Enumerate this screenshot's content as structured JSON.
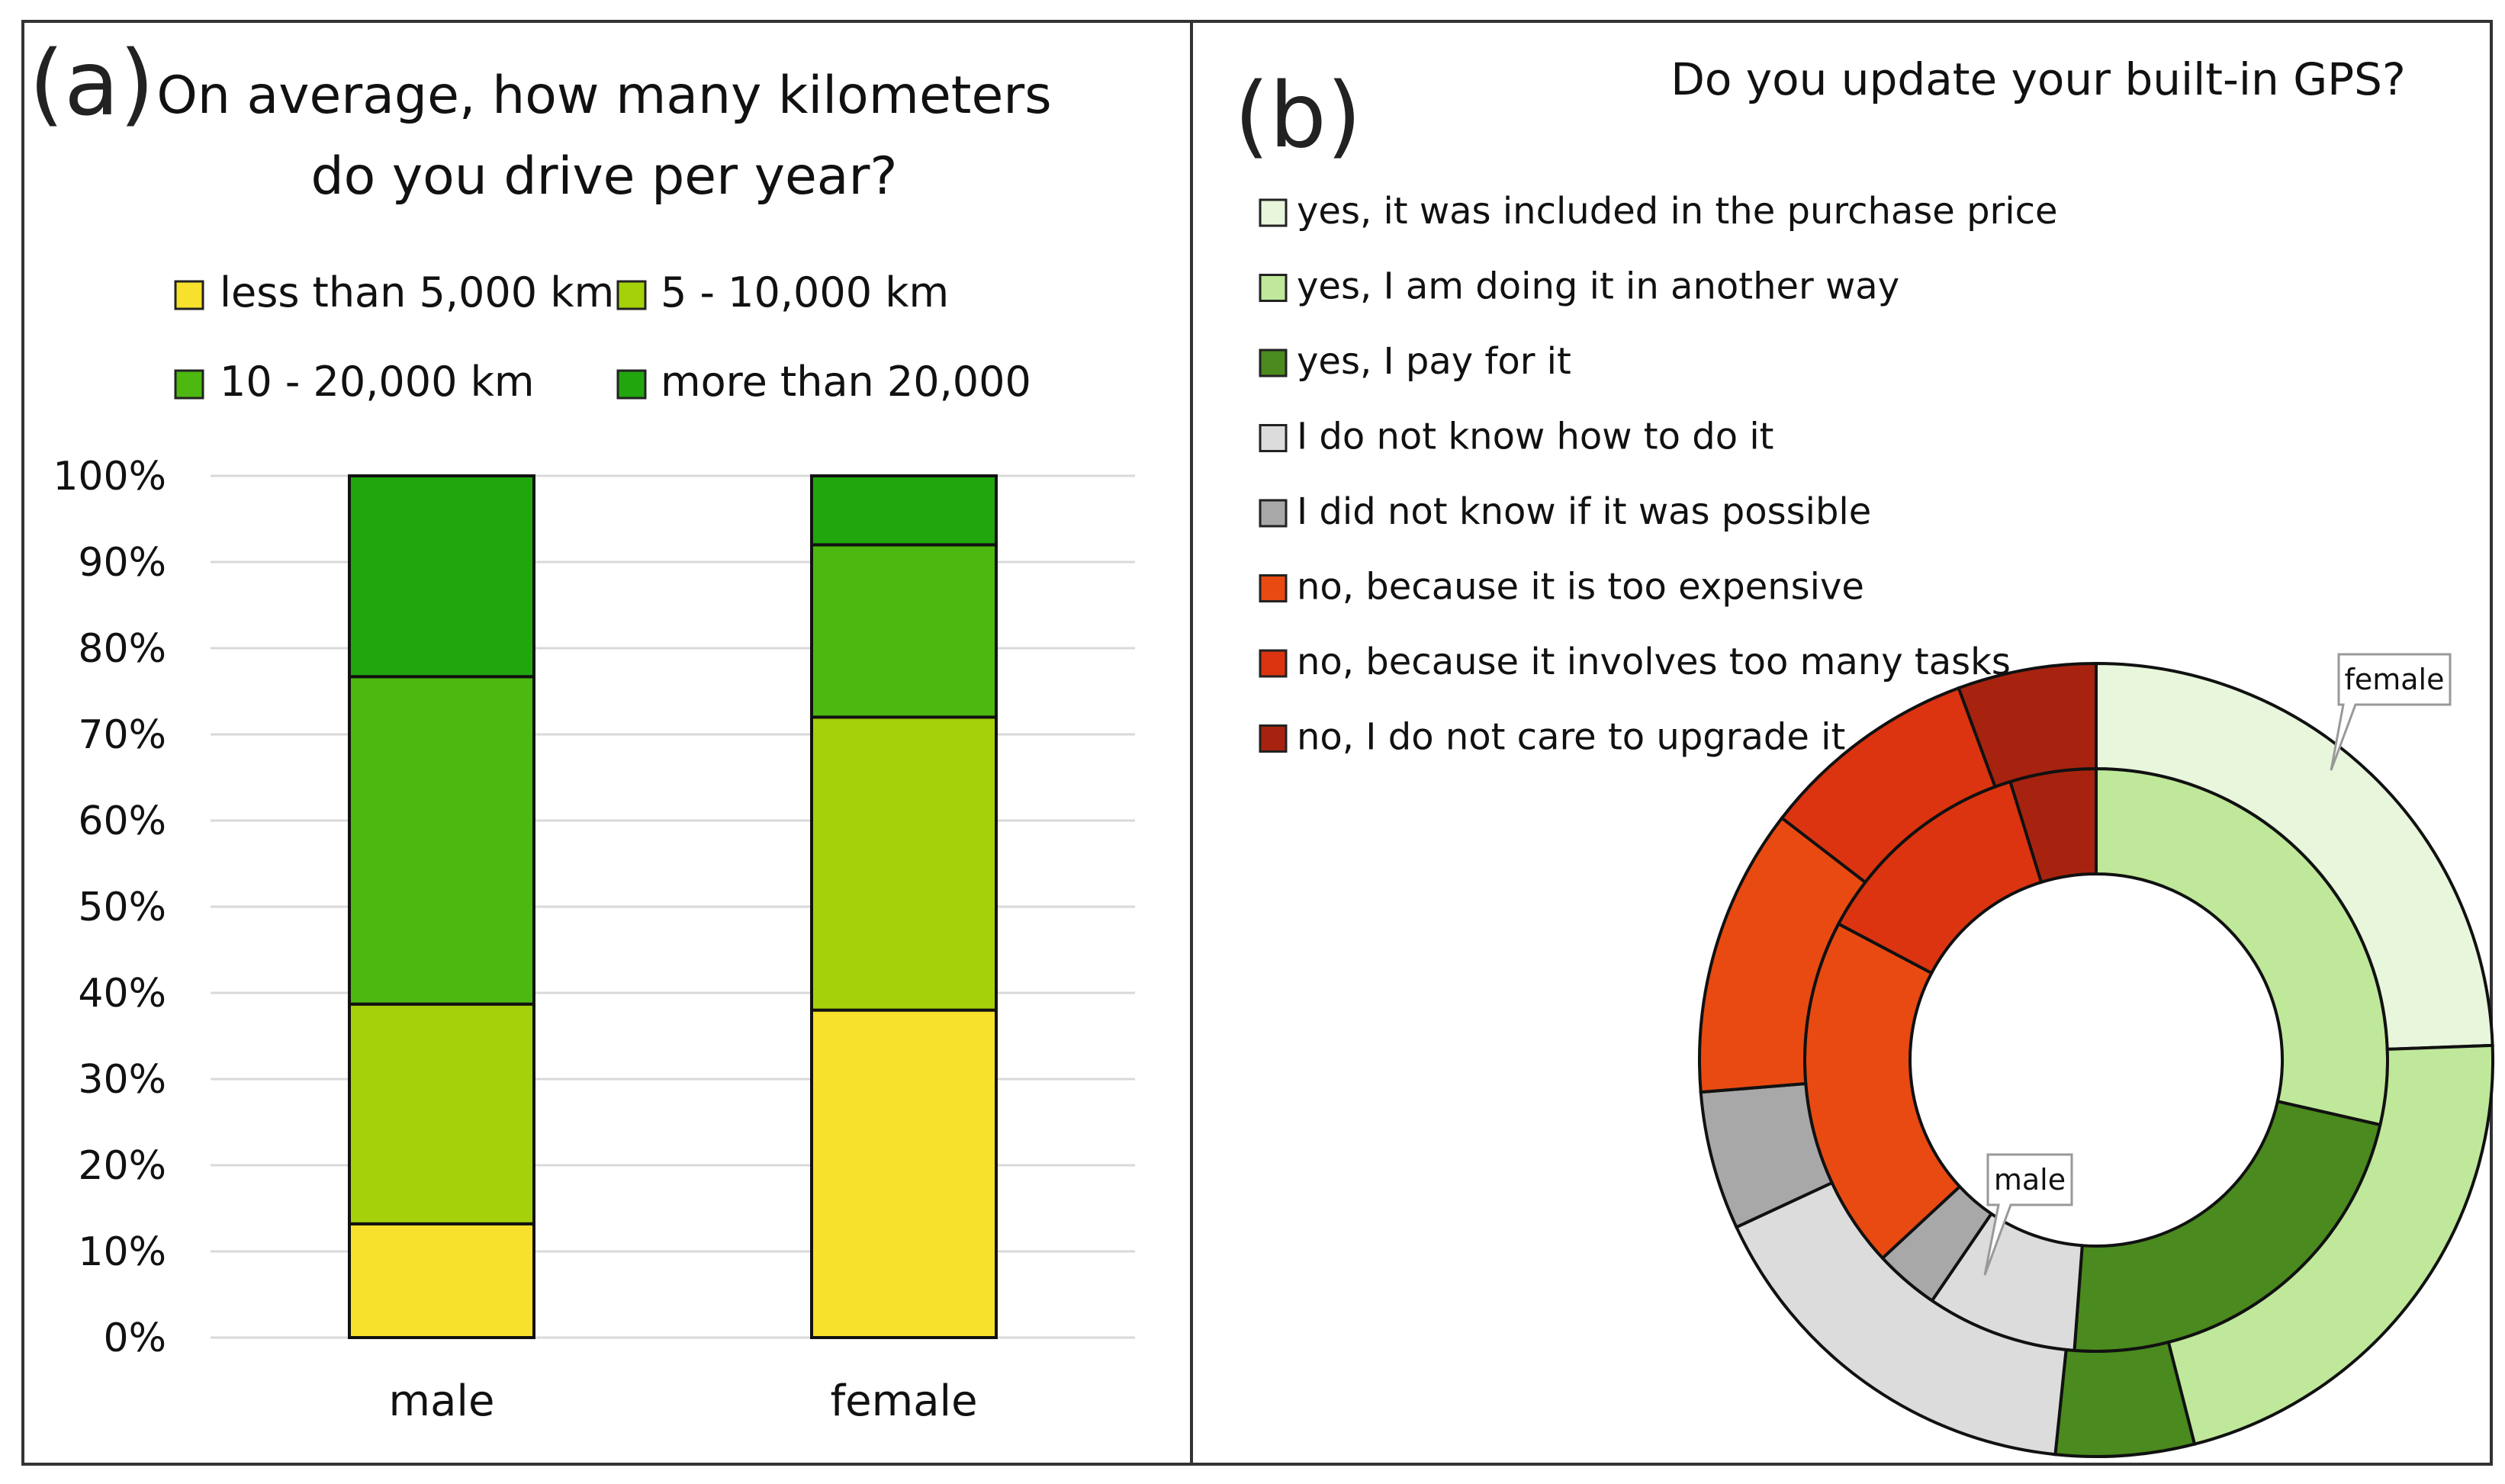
{
  "panels": {
    "a": {
      "label": "(a)"
    },
    "b": {
      "label": "(b)"
    }
  },
  "colors": {
    "stack": [
      "#f7e12c",
      "#a5d10a",
      "#4cb810",
      "#21a60e"
    ],
    "donut": [
      "#e8f6dc",
      "#bfe89a",
      "#4a8a1e",
      "#dcdcdc",
      "#a8a8a8",
      "#e84a12",
      "#dc3410",
      "#a8230f"
    ],
    "grid": "#d9d9d9",
    "frame": "#333333"
  },
  "chart_data": [
    {
      "type": "bar",
      "stacked": true,
      "title": [
        "On average, how many kilometers",
        "do you drive per year?"
      ],
      "categories": [
        "male",
        "female"
      ],
      "series": [
        {
          "name": "less than 5,000 km",
          "values": [
            13.2,
            38.0
          ]
        },
        {
          "name": "5 - 10,000 km",
          "values": [
            25.5,
            34.0
          ]
        },
        {
          "name": "10 - 20,000 km",
          "values": [
            38.0,
            20.0
          ]
        },
        {
          "name": "more than 20,000",
          "values": [
            23.3,
            8.0
          ]
        }
      ],
      "ylim": [
        0,
        100
      ],
      "yticks": [
        "0%",
        "10%",
        "20%",
        "30%",
        "40%",
        "50%",
        "60%",
        "70%",
        "80%",
        "90%",
        "100%"
      ],
      "grid": true,
      "legend_position": "top"
    },
    {
      "type": "pie",
      "donut": true,
      "title": "Do you update your built-in GPS?",
      "legend": [
        "yes, it was included in the purchase price",
        "yes, I am doing it in another way",
        "yes, I pay for it",
        "I do not know how to do it",
        "I did not know if it was possible",
        "no, because it is too expensive",
        "no, because it involves too many tasks",
        "no, I do not care to upgrade it"
      ],
      "rings": [
        {
          "name": "male",
          "position": "inner",
          "values": [
            0,
            24,
            19,
            7,
            3,
            16.5,
            10.5,
            4
          ]
        },
        {
          "name": "female",
          "position": "outer",
          "values": [
            26,
            23,
            6,
            17.5,
            6,
            12.5,
            9.5,
            6
          ]
        }
      ],
      "callouts": [
        "female",
        "male"
      ],
      "legend_position": "top-left"
    }
  ]
}
